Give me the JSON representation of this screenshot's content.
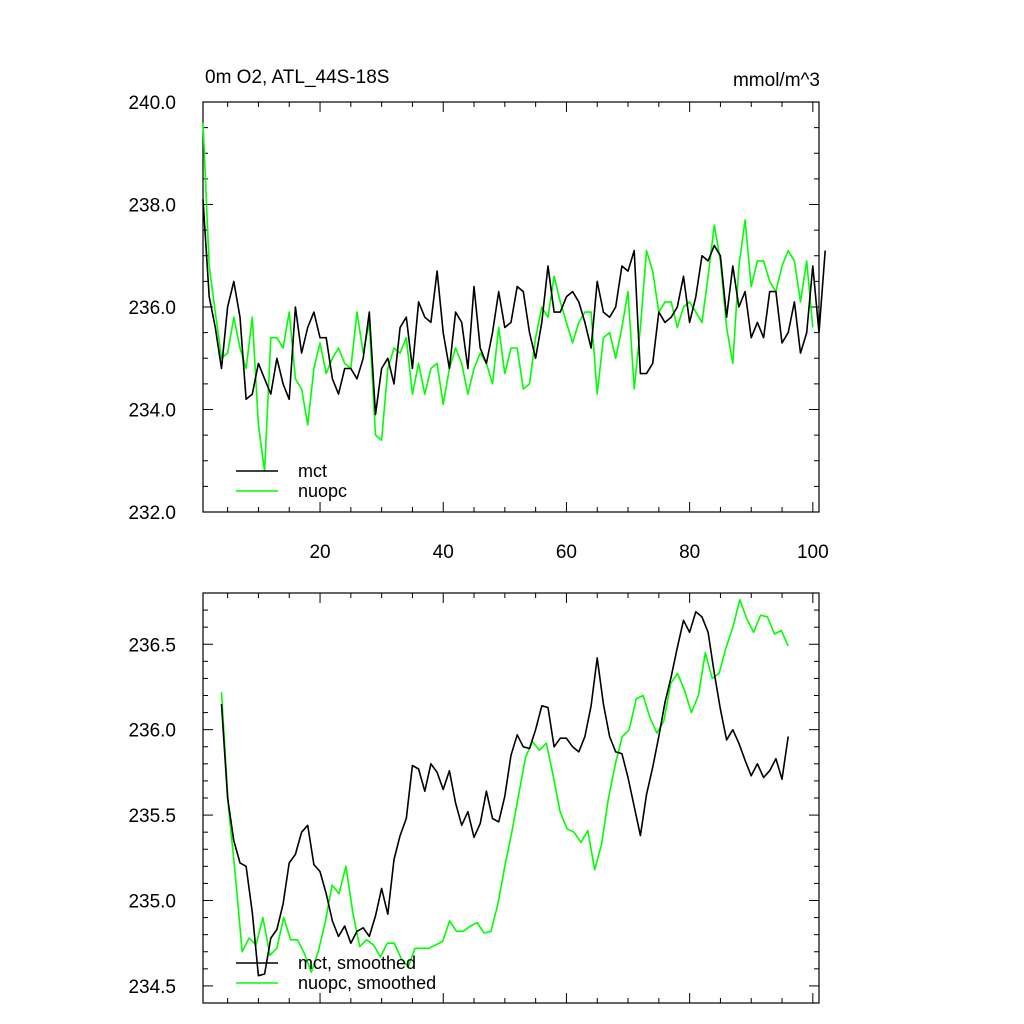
{
  "chart_data": [
    {
      "type": "line",
      "title": "0m O2, ATL_44S-18S",
      "units_label": "mmol/m^3",
      "xlabel": "",
      "ylabel": "",
      "xlim": [
        1,
        101
      ],
      "ylim": [
        232.0,
        240.0
      ],
      "x_ticks": [
        20,
        40,
        60,
        80,
        100
      ],
      "x_tick_labels": [
        "20",
        "40",
        "60",
        "80",
        "100"
      ],
      "y_ticks": [
        232.0,
        234.0,
        236.0,
        238.0,
        240.0
      ],
      "y_tick_labels": [
        "232.0",
        "234.0",
        "236.0",
        "238.0",
        "240.0"
      ],
      "legend_position": "bottom-left",
      "grid": false,
      "x_start": 1,
      "series": [
        {
          "name": "mct",
          "color": "#000000",
          "values": [
            238.1,
            236.2,
            235.6,
            234.8,
            236.0,
            236.5,
            235.8,
            234.2,
            234.3,
            234.9,
            234.6,
            234.3,
            235.0,
            234.5,
            234.2,
            236.0,
            235.1,
            235.6,
            235.9,
            235.4,
            235.4,
            234.6,
            234.3,
            234.8,
            234.8,
            234.6,
            235.0,
            235.9,
            233.9,
            234.8,
            235.0,
            234.5,
            235.6,
            235.8,
            234.8,
            236.1,
            235.8,
            235.7,
            236.7,
            235.5,
            234.8,
            235.9,
            235.7,
            234.8,
            236.4,
            235.2,
            234.9,
            235.5,
            236.3,
            235.6,
            235.7,
            236.4,
            236.3,
            235.5,
            235.0,
            235.7,
            236.8,
            235.9,
            235.9,
            236.2,
            236.3,
            236.1,
            235.7,
            235.2,
            236.5,
            235.9,
            235.8,
            236.0,
            236.8,
            236.7,
            237.1,
            234.7,
            234.7,
            234.9,
            235.9,
            235.7,
            235.8,
            236.0,
            236.6,
            235.7,
            236.2,
            237.0,
            236.9,
            237.2,
            237.0,
            235.8,
            236.8,
            236.0,
            236.3,
            235.4,
            235.7,
            235.4,
            236.3,
            236.3,
            235.3,
            235.5,
            236.1,
            235.1,
            235.5,
            236.8,
            235.5,
            237.1
          ],
          "smoothed": [
            236.15,
            235.6,
            235.35,
            235.22,
            235.2,
            234.93,
            234.56,
            234.57,
            234.78,
            234.83,
            234.98,
            235.22,
            235.27,
            235.4,
            235.44,
            235.21,
            235.17,
            235.04,
            234.88,
            234.79,
            234.85,
            234.75,
            234.82,
            234.84,
            234.79,
            234.91,
            235.07,
            234.92,
            235.24,
            235.38,
            235.48,
            235.79,
            235.77,
            235.64,
            235.8,
            235.75,
            235.65,
            235.76,
            235.57,
            235.44,
            235.52,
            235.37,
            235.45,
            235.64,
            235.48,
            235.46,
            235.61,
            235.85,
            235.97,
            235.9,
            235.89,
            236.0,
            236.14,
            236.13,
            235.9,
            235.95,
            235.95,
            235.9,
            235.87,
            235.96,
            236.14,
            236.42,
            236.15,
            235.96,
            235.87,
            235.86,
            235.72,
            235.55,
            235.38,
            235.62,
            235.78,
            235.96,
            236.16,
            236.31,
            236.48,
            236.64,
            236.57,
            236.69,
            236.66,
            236.57,
            236.33,
            236.12,
            235.94,
            236.0,
            235.92,
            235.82,
            235.73,
            235.8,
            235.72,
            235.76,
            235.83,
            235.71,
            235.96
          ],
          "smoothed_label": "mct, smoothed"
        },
        {
          "name": "nuopc",
          "color": "#00ff00",
          "values": [
            239.6,
            236.8,
            235.9,
            235.0,
            235.1,
            235.8,
            235.2,
            234.8,
            235.8,
            233.7,
            232.8,
            235.4,
            235.4,
            235.2,
            235.9,
            234.6,
            234.4,
            233.7,
            234.8,
            235.3,
            234.7,
            235.0,
            235.2,
            234.9,
            234.8,
            235.9,
            235.1,
            235.7,
            233.5,
            233.4,
            234.8,
            235.2,
            235.1,
            235.4,
            234.3,
            234.9,
            234.3,
            234.8,
            234.9,
            234.1,
            234.8,
            235.2,
            234.9,
            234.3,
            234.8,
            235.1,
            234.9,
            234.5,
            235.6,
            234.7,
            235.2,
            235.2,
            234.4,
            234.5,
            235.4,
            236.0,
            235.8,
            236.6,
            236.1,
            235.7,
            235.3,
            235.7,
            235.9,
            235.9,
            234.3,
            235.4,
            235.5,
            235.0,
            235.6,
            236.3,
            234.4,
            235.6,
            237.1,
            236.7,
            235.9,
            236.1,
            236.1,
            235.6,
            236.0,
            236.1,
            235.9,
            235.7,
            236.6,
            237.6,
            236.9,
            235.6,
            234.9,
            236.8,
            237.7,
            236.4,
            236.9,
            236.9,
            236.5,
            236.3,
            236.8,
            237.1,
            236.9,
            236.1,
            236.9,
            235.6
          ],
          "smoothed": [
            236.22,
            235.55,
            235.15,
            234.7,
            234.78,
            234.74,
            234.9,
            234.68,
            234.72,
            234.9,
            234.77,
            234.77,
            234.69,
            234.58,
            234.7,
            234.87,
            235.09,
            235.04,
            235.2,
            234.93,
            234.73,
            234.77,
            234.74,
            234.67,
            234.75,
            234.75,
            234.66,
            234.61,
            234.72,
            234.72,
            234.72,
            234.74,
            234.76,
            234.88,
            234.82,
            234.82,
            234.85,
            234.87,
            234.81,
            234.82,
            234.98,
            235.2,
            235.4,
            235.62,
            235.84,
            235.93,
            235.88,
            235.92,
            235.73,
            235.52,
            235.42,
            235.4,
            235.34,
            235.41,
            235.18,
            235.33,
            235.6,
            235.8,
            235.96,
            236.0,
            236.18,
            236.2,
            236.07,
            235.98,
            236.05,
            236.27,
            236.33,
            236.23,
            236.1,
            236.2,
            236.45,
            236.3,
            236.33,
            236.48,
            236.6,
            236.76,
            236.65,
            236.57,
            236.67,
            236.66,
            236.56,
            236.58,
            236.49
          ],
          "smoothed_label": "nuopc, smoothed"
        }
      ]
    },
    {
      "type": "line",
      "title": "",
      "xlabel": "",
      "ylabel": "",
      "xlim": [
        1,
        101
      ],
      "ylim": [
        234.4,
        236.8
      ],
      "y_ticks": [
        234.5,
        235.0,
        235.5,
        236.0,
        236.5
      ],
      "y_tick_labels": [
        "234.5",
        "235.0",
        "235.5",
        "236.0",
        "236.5"
      ],
      "legend_position": "bottom-left",
      "grid": false
    }
  ]
}
